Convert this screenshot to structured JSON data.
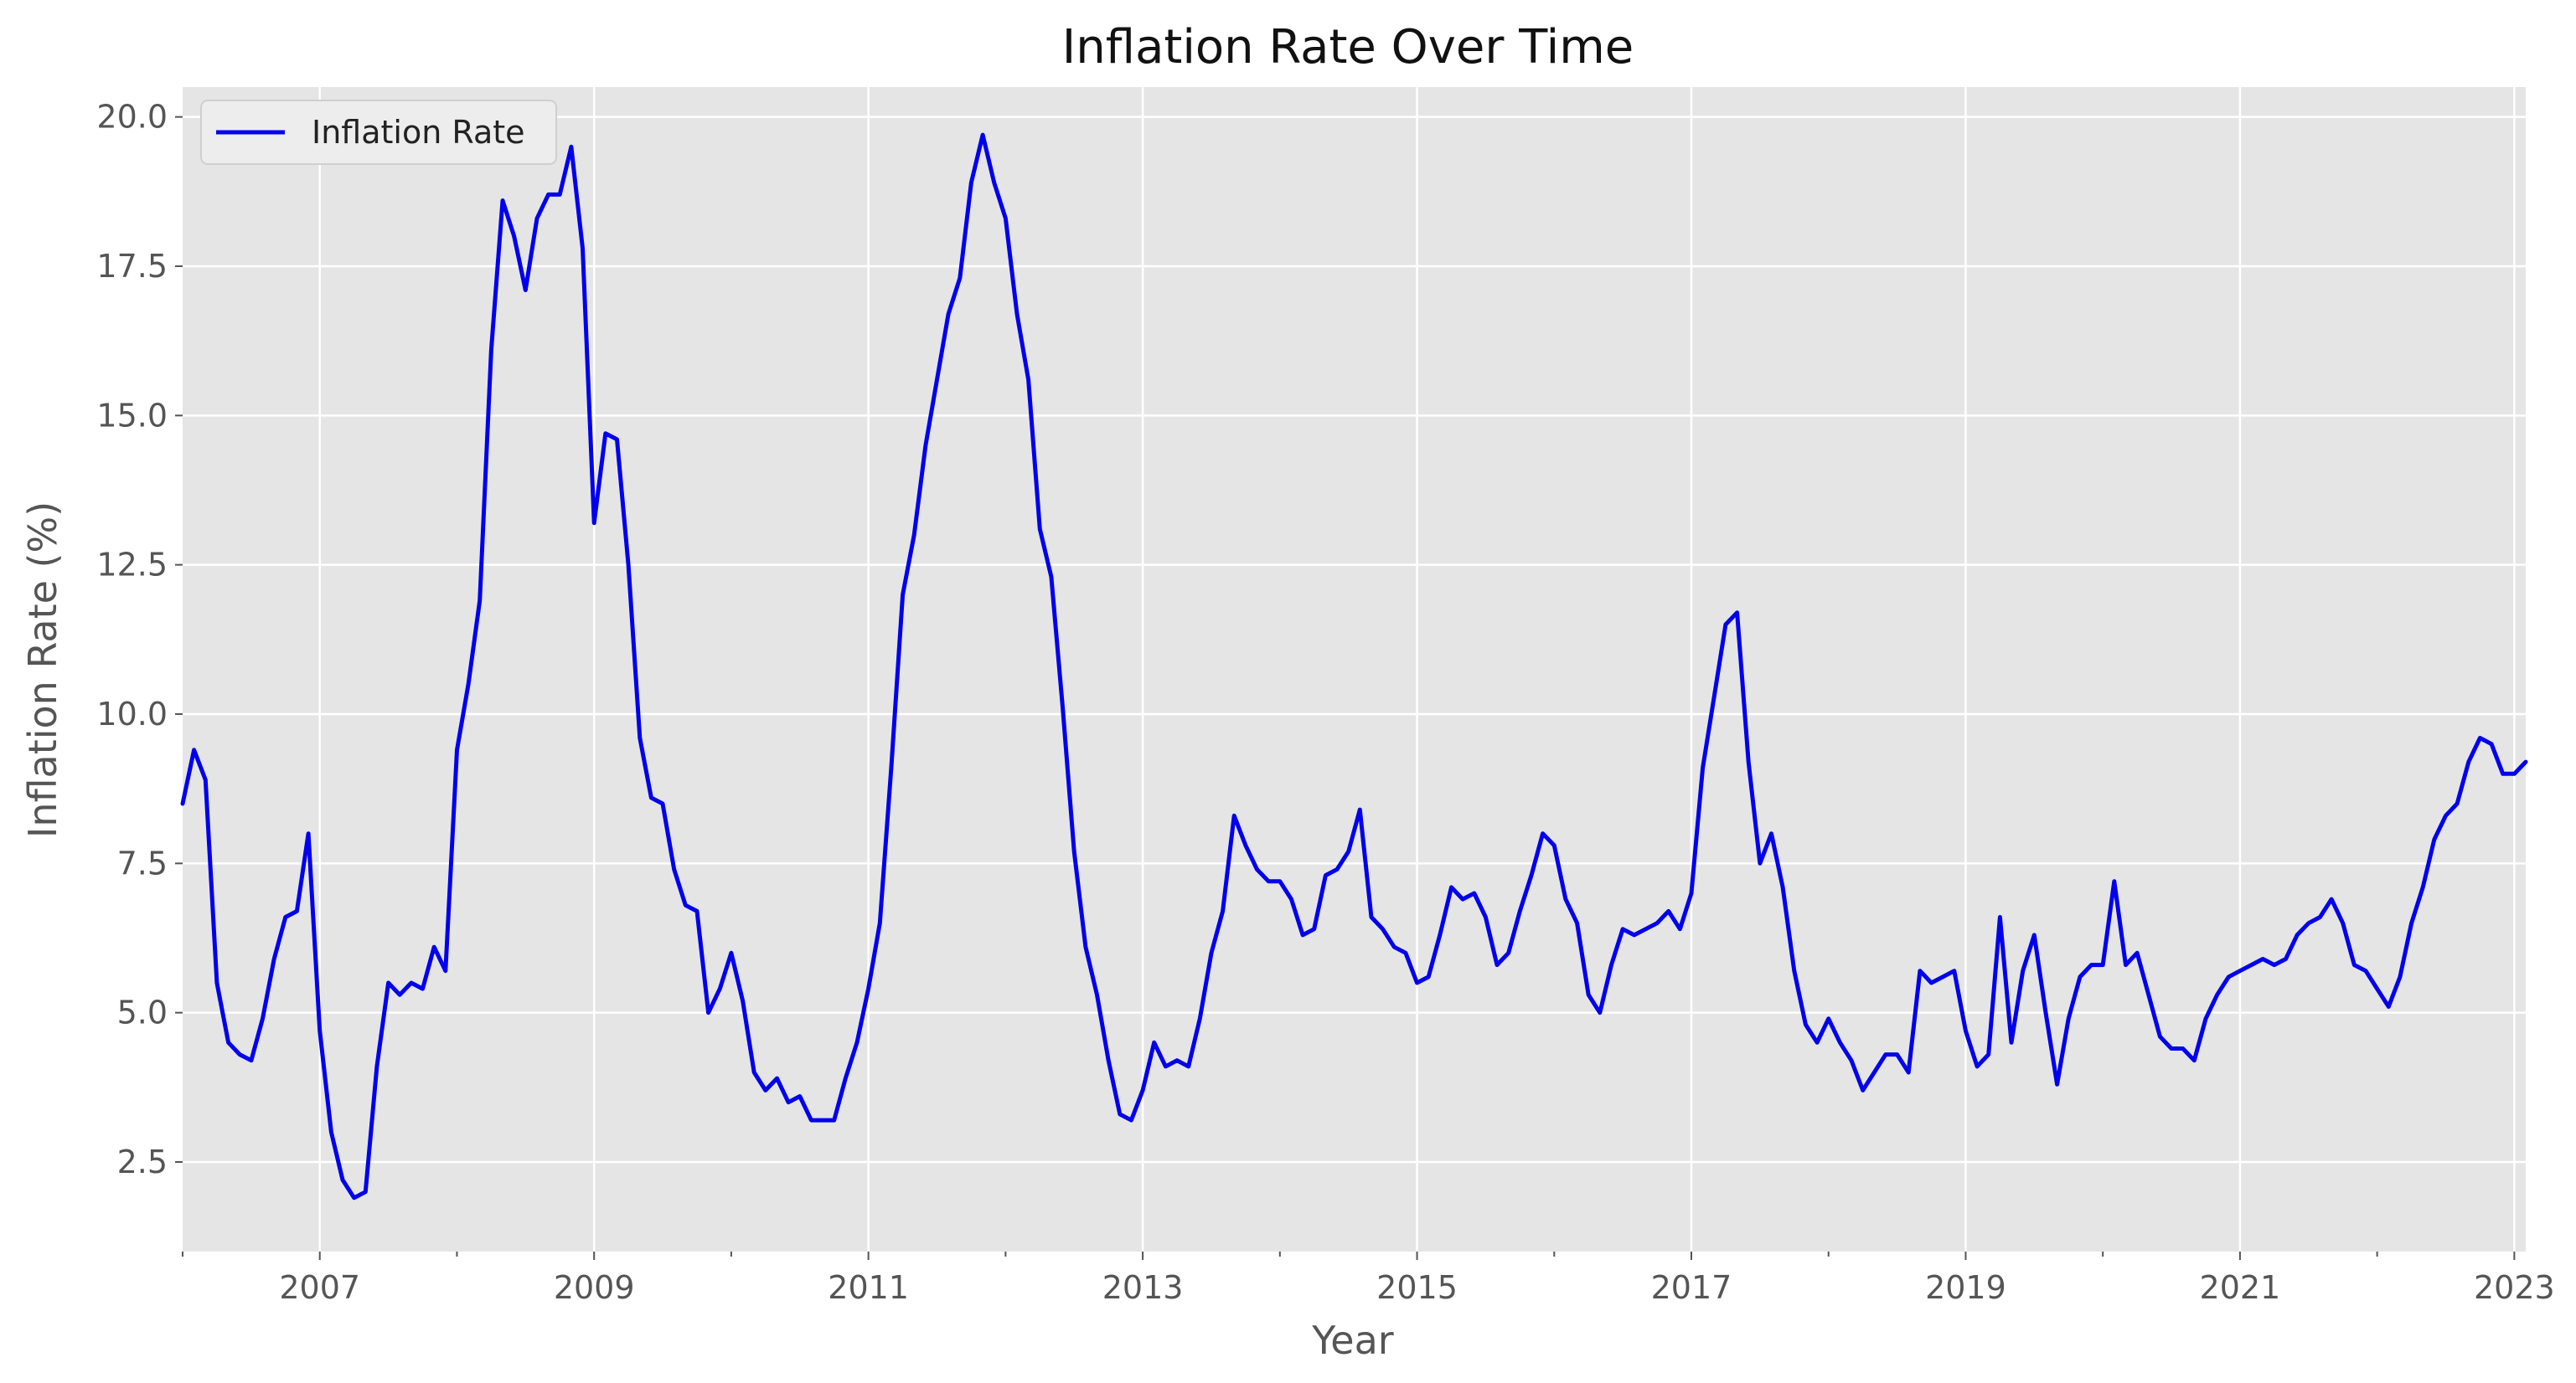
{
  "chart_data": {
    "type": "line",
    "title": "Inflation Rate Over Time",
    "xlabel": "Year",
    "ylabel": "Inflation Rate (%)",
    "x_start": "2006-01",
    "x_step": "monthly",
    "xlim": [
      "2006-01",
      "2023-02"
    ],
    "ylim": [
      1.0,
      20.5
    ],
    "x_ticks": [
      "2007",
      "2009",
      "2011",
      "2013",
      "2015",
      "2017",
      "2019",
      "2021",
      "2023"
    ],
    "y_ticks": [
      "2.5",
      "5.0",
      "7.5",
      "10.0",
      "12.5",
      "15.0",
      "17.5",
      "20.0"
    ],
    "grid": true,
    "legend_position": "top-left",
    "colors": {
      "series": "#0000ee",
      "plot_background": "#e5e5e5",
      "grid": "#ffffff"
    },
    "series": [
      {
        "name": "Inflation Rate",
        "values": [
          8.5,
          9.4,
          8.9,
          5.5,
          4.5,
          4.3,
          4.2,
          4.9,
          5.9,
          6.6,
          6.7,
          8.0,
          4.7,
          3.0,
          2.2,
          1.9,
          2.0,
          4.1,
          5.5,
          5.3,
          5.5,
          5.4,
          6.1,
          5.7,
          9.4,
          10.5,
          11.9,
          16.1,
          18.6,
          18.0,
          17.1,
          18.3,
          18.7,
          18.7,
          19.5,
          17.8,
          13.2,
          14.7,
          14.6,
          12.5,
          9.6,
          8.6,
          8.5,
          7.4,
          6.8,
          6.7,
          5.0,
          5.4,
          6.0,
          5.2,
          4.0,
          3.7,
          3.9,
          3.5,
          3.6,
          3.2,
          3.2,
          3.2,
          3.9,
          4.5,
          5.4,
          6.5,
          9.1,
          12.0,
          13.0,
          14.5,
          15.6,
          16.7,
          17.3,
          18.9,
          19.7,
          18.9,
          18.3,
          16.7,
          15.6,
          13.1,
          12.3,
          10.1,
          7.7,
          6.1,
          5.3,
          4.2,
          3.3,
          3.2,
          3.7,
          4.5,
          4.1,
          4.2,
          4.1,
          4.9,
          6.0,
          6.7,
          8.3,
          7.8,
          7.4,
          7.2,
          7.2,
          6.9,
          6.3,
          6.4,
          7.3,
          7.4,
          7.7,
          8.4,
          6.6,
          6.4,
          6.1,
          6.0,
          5.5,
          5.6,
          6.3,
          7.1,
          6.9,
          7.0,
          6.6,
          5.8,
          6.0,
          6.7,
          7.3,
          8.0,
          7.8,
          6.9,
          6.5,
          5.3,
          5.0,
          5.8,
          6.4,
          6.3,
          6.4,
          6.5,
          6.7,
          6.4,
          7.0,
          9.1,
          10.3,
          11.5,
          11.7,
          9.2,
          7.5,
          8.0,
          7.1,
          5.7,
          4.8,
          4.5,
          4.9,
          4.5,
          4.2,
          3.7,
          4.0,
          4.3,
          4.3,
          4.0,
          5.7,
          5.5,
          5.6,
          5.7,
          4.7,
          4.1,
          4.3,
          6.6,
          4.5,
          5.7,
          6.3,
          5.0,
          3.8,
          4.9,
          5.6,
          5.8,
          5.8,
          7.2,
          5.8,
          6.0,
          5.3,
          4.6,
          4.4,
          4.4,
          4.2,
          4.9,
          5.3,
          5.6,
          5.7,
          5.8,
          5.9,
          5.8,
          5.9,
          6.3,
          6.5,
          6.6,
          6.9,
          6.5,
          5.8,
          5.7,
          5.4,
          5.1,
          5.6,
          6.5,
          7.1,
          7.9,
          8.3,
          8.5,
          9.2,
          9.6,
          9.5,
          9.0,
          9.0,
          9.2
        ]
      }
    ]
  }
}
